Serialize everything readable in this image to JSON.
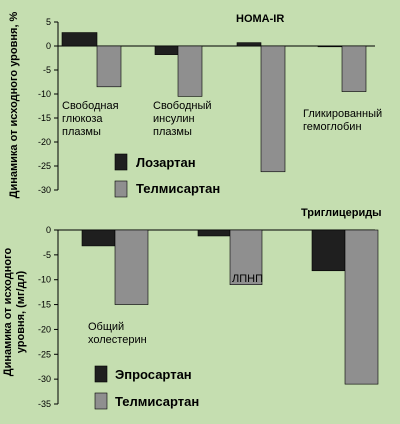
{
  "colors": {
    "background": "#c5deb0",
    "series_dark": "#1f1f1f",
    "series_light": "#8f8f8f"
  },
  "chart_data": [
    {
      "type": "bar",
      "title": "",
      "ylabel": "Динамика от исходного уровня, %",
      "ylim": [
        -30,
        5
      ],
      "yticks": [
        5,
        0,
        -5,
        -10,
        -15,
        -20,
        -25,
        -30
      ],
      "categories": [
        [
          "Свободная",
          "глюкоза",
          "плазмы"
        ],
        [
          "Свободный",
          "инсулин",
          "плазмы"
        ],
        [
          "HOMA-IR"
        ],
        [
          "Гликированный",
          "гемоглобин"
        ]
      ],
      "series": [
        {
          "name": "Лозартан",
          "color": "#1f1f1f",
          "values": [
            2.8,
            -1.8,
            0.7,
            0
          ]
        },
        {
          "name": "Телмисартан",
          "color": "#8f8f8f",
          "values": [
            -8.5,
            -10.5,
            -26.2,
            -9.5
          ]
        }
      ],
      "grid": false,
      "legend": "bottom-center"
    },
    {
      "type": "bar",
      "title": "",
      "ylabel": "Динамика от исходного уровня, (мг/дл)",
      "ylim": [
        -35,
        0
      ],
      "yticks": [
        0,
        -5,
        -10,
        -15,
        -20,
        -25,
        -30,
        -35
      ],
      "categories": [
        [
          "Общий",
          "холестерин"
        ],
        [
          "ЛПНП"
        ],
        [
          "Триглицериды"
        ]
      ],
      "series": [
        {
          "name": "Эпросартан",
          "color": "#1f1f1f",
          "values": [
            -3.2,
            -1.2,
            -8.2
          ]
        },
        {
          "name": "Телмисартан",
          "color": "#8f8f8f",
          "values": [
            -15,
            -11,
            -31
          ]
        }
      ],
      "grid": false,
      "legend": "bottom-left"
    }
  ]
}
